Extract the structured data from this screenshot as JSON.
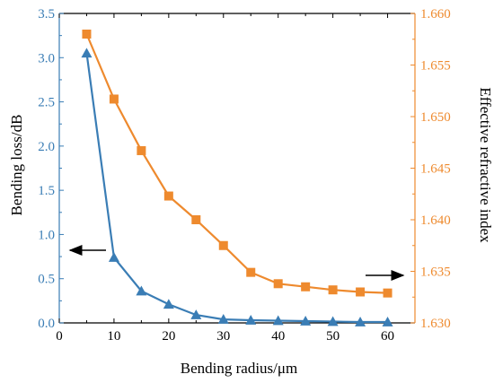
{
  "chart_data": {
    "type": "line",
    "xlabel": "Bending radius/μm",
    "ylabel_left": "Bending loss/dB",
    "ylabel_right": "Effective refractive index",
    "xlim": [
      0,
      65
    ],
    "ylim_left": [
      0,
      3.5
    ],
    "ylim_right": [
      1.63,
      1.66
    ],
    "x_ticks": [
      "0",
      "10",
      "20",
      "30",
      "40",
      "50",
      "60"
    ],
    "y_left_ticks": [
      "0.0",
      "0.5",
      "1.0",
      "1.5",
      "2.0",
      "2.5",
      "3.0",
      "3.5"
    ],
    "y_right_ticks": [
      "1.630",
      "1.635",
      "1.640",
      "1.645",
      "1.650",
      "1.655",
      "1.660"
    ],
    "grid": false,
    "x": [
      5,
      10,
      15,
      20,
      25,
      30,
      35,
      40,
      45,
      50,
      55,
      60
    ],
    "series": [
      {
        "axis": "left",
        "marker": "triangle",
        "color": "#3A7DB5",
        "values": [
          3.05,
          0.74,
          0.36,
          0.21,
          0.09,
          0.04,
          0.03,
          0.025,
          0.02,
          0.015,
          0.01,
          0.01
        ]
      },
      {
        "axis": "right",
        "marker": "square",
        "color": "#EE8A2E",
        "values": [
          1.658,
          1.6517,
          1.6467,
          1.6423,
          1.64,
          1.6375,
          1.6349,
          1.6338,
          1.6335,
          1.6332,
          1.633,
          1.6329
        ]
      }
    ],
    "annotations": [
      {
        "type": "arrow",
        "direction": "left",
        "meaning": "blue series uses left axis"
      },
      {
        "type": "arrow",
        "direction": "right",
        "meaning": "orange series uses right axis"
      }
    ],
    "colors": {
      "left_axis": "#3A7DB5",
      "right_axis": "#EE8A2E",
      "frame": "#000000"
    }
  }
}
